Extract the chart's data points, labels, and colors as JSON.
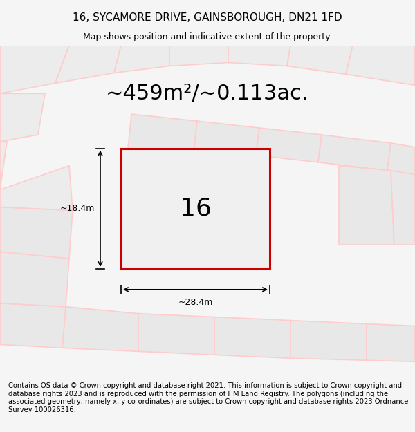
{
  "title": "16, SYCAMORE DRIVE, GAINSBOROUGH, DN21 1FD",
  "subtitle": "Map shows position and indicative extent of the property.",
  "footer": "Contains OS data © Crown copyright and database right 2021. This information is subject to Crown copyright and database rights 2023 and is reproduced with the permission of HM Land Registry. The polygons (including the associated geometry, namely x, y co-ordinates) are subject to Crown copyright and database rights 2023 Ordnance Survey 100026316.",
  "area_text": "~459m²/~0.113ac.",
  "plot_number": "16",
  "dim_width": "~28.4m",
  "dim_height": "~18.4m",
  "bg_color": "#f5f5f5",
  "map_bg": "#ffffff",
  "plot_fill": "#f0f0f0",
  "plot_outline": "#cc0000",
  "road_line_color": "#ffcccc",
  "title_fontsize": 11,
  "subtitle_fontsize": 9,
  "footer_fontsize": 7.2,
  "area_fontsize": 22,
  "plot_num_fontsize": 26
}
